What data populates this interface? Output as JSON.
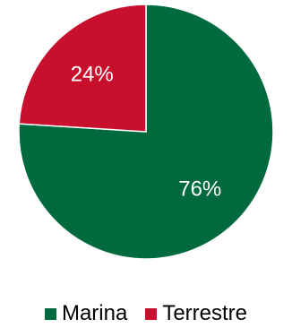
{
  "chart_data": {
    "type": "pie",
    "title": "",
    "series": [
      {
        "name": "Marina",
        "value": 76,
        "label": "76%",
        "color": "#006a3f"
      },
      {
        "name": "Terrestre",
        "value": 24,
        "label": "24%",
        "color": "#c8102e"
      }
    ],
    "start": "top",
    "direction": "clockwise",
    "legend": {
      "position": "bottom"
    }
  }
}
